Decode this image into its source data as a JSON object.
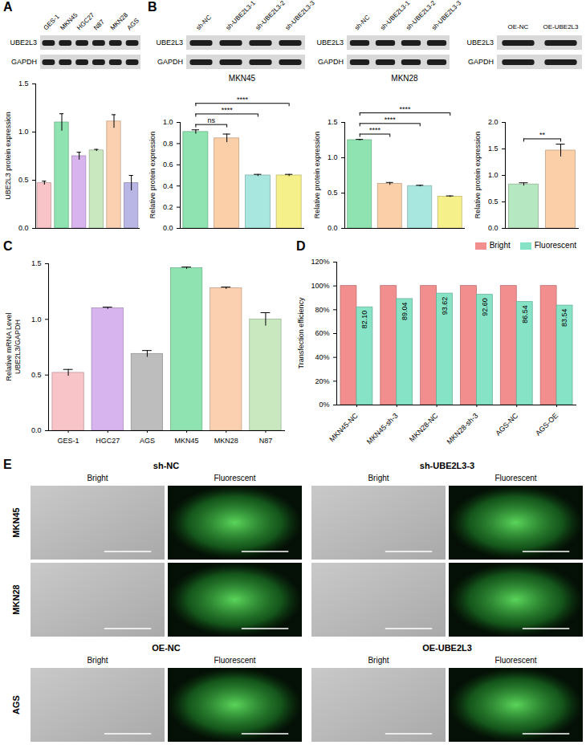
{
  "chart_data": [
    {
      "panel": "A",
      "type": "bar",
      "categories": [
        "GES-1",
        "MKN45",
        "HGC27",
        "N87",
        "MKN28",
        "AGS"
      ],
      "values": [
        0.47,
        1.1,
        0.75,
        0.81,
        1.11,
        0.47
      ],
      "errors": [
        0.02,
        0.09,
        0.04,
        0.01,
        0.07,
        0.08
      ],
      "colors": [
        "#f8c4c8",
        "#8fe3b0",
        "#d8b4ef",
        "#c9e8c0",
        "#fbd0b0",
        "#b9b6e6"
      ],
      "ylabel": "UBE2L3 protein expression",
      "ylim": [
        0,
        1.5
      ],
      "yticks": [
        {
          "value": 0,
          "label": "0.0"
        },
        {
          "value": 0.5,
          "label": "0.5"
        },
        {
          "value": 1,
          "label": "1.0"
        },
        {
          "value": 1.5,
          "label": "1.5"
        }
      ],
      "tick_labels": "y"
    },
    {
      "panel": "B",
      "type": "bar",
      "title": "MKN45",
      "categories": [
        "sh-NC",
        "sh-UBE2L3-1",
        "sh-UBE2L3-2",
        "sh-UBE2L3-3"
      ],
      "values": [
        0.91,
        0.85,
        0.5,
        0.5
      ],
      "errors": [
        0.02,
        0.04,
        0.01,
        0.01
      ],
      "colors": [
        "#8fe3b0",
        "#fbcfa8",
        "#a8e6e0",
        "#f5f08a"
      ],
      "ylabel": "Relative protein expression",
      "ylim": [
        0,
        1
      ],
      "yticks": [
        {
          "value": 0,
          "label": "0.0"
        },
        {
          "value": 0.2,
          "label": "0.2"
        },
        {
          "value": 0.4,
          "label": "0.4"
        },
        {
          "value": 0.6,
          "label": "0.6"
        },
        {
          "value": 0.8,
          "label": "0.8"
        },
        {
          "value": 1,
          "label": "1.0"
        }
      ],
      "comparisons": [
        {
          "groups": [
            "sh-NC",
            "sh-UBE2L3-1"
          ],
          "label": "ns"
        },
        {
          "groups": [
            "sh-NC",
            "sh-UBE2L3-2"
          ],
          "label": "****"
        },
        {
          "groups": [
            "sh-NC",
            "sh-UBE2L3-3"
          ],
          "label": "****"
        }
      ],
      "tick_labels": "y"
    },
    {
      "type": "bar",
      "title": "MKN28",
      "categories": [
        "sh-NC",
        "sh-UBE2L3-1",
        "sh-UBE2L3-2",
        "sh-UBE2L3-3"
      ],
      "values": [
        1.25,
        0.63,
        0.6,
        0.45
      ],
      "errors": [
        0.01,
        0.02,
        0.01,
        0.01
      ],
      "colors": [
        "#8fe3b0",
        "#fbcfa8",
        "#a8e6e0",
        "#f5f08a"
      ],
      "ylabel": "Relative protein expression",
      "ylim": [
        0,
        1.5
      ],
      "yticks": [
        {
          "value": 0,
          "label": "0.0"
        },
        {
          "value": 0.5,
          "label": "0.5"
        },
        {
          "value": 1,
          "label": "1.0"
        },
        {
          "value": 1.5,
          "label": "1.5"
        }
      ],
      "comparisons": [
        {
          "groups": [
            "sh-NC",
            "sh-UBE2L3-1"
          ],
          "label": "****"
        },
        {
          "groups": [
            "sh-NC",
            "sh-UBE2L3-2"
          ],
          "label": "****"
        },
        {
          "groups": [
            "sh-NC",
            "sh-UBE2L3-3"
          ],
          "label": "****"
        }
      ],
      "tick_labels": "y"
    },
    {
      "type": "bar",
      "categories": [
        "OE-NC",
        "OE-UBE2L3"
      ],
      "values": [
        0.83,
        1.47
      ],
      "errors": [
        0.03,
        0.12
      ],
      "colors": [
        "#b5e8c0",
        "#fbcfa8"
      ],
      "ylabel": "Relative protein expression",
      "ylim": [
        0,
        2
      ],
      "yticks": [
        {
          "value": 0,
          "label": "0.0"
        },
        {
          "value": 0.5,
          "label": "0.5"
        },
        {
          "value": 1,
          "label": "1.0"
        },
        {
          "value": 1.5,
          "label": "1.5"
        },
        {
          "value": 2,
          "label": "2.0"
        }
      ],
      "comparisons": [
        {
          "groups": [
            "OE-NC",
            "OE-UBE2L3"
          ],
          "label": "**"
        }
      ],
      "tick_labels": "y"
    },
    {
      "panel": "C",
      "type": "bar",
      "categories": [
        "GES-1",
        "HGC27",
        "AGS",
        "MKN45",
        "MKN28",
        "N87"
      ],
      "values": [
        0.52,
        1.1,
        0.69,
        1.46,
        1.28,
        1.0
      ],
      "errors": [
        0.03,
        0.01,
        0.03,
        0.01,
        0.01,
        0.06
      ],
      "colors": [
        "#f8c4c8",
        "#d8b4ef",
        "#bdbdbd",
        "#8fe3b0",
        "#fbd0b0",
        "#c9e8c0"
      ],
      "ylabel": "Relative mRNA Level\nUBE2L3/GAPDH",
      "ylim": [
        0,
        1.5
      ],
      "yticks": [
        {
          "value": 0,
          "label": "0.0"
        },
        {
          "value": 0.5,
          "label": "0.5"
        },
        {
          "value": 1,
          "label": "1.0"
        },
        {
          "value": 1.5,
          "label": "1.5"
        }
      ]
    },
    {
      "panel": "D",
      "type": "bar",
      "categories": [
        "MKN45-NC",
        "MKN45-sh-3",
        "MKN28-NC",
        "MKN28-sh-3",
        "AGS-NC",
        "AGS-OE"
      ],
      "series": [
        {
          "name": "Bright",
          "color": "#f28e8e",
          "values": [
            100,
            100,
            100,
            100,
            100,
            100
          ]
        },
        {
          "name": "Fluorescent",
          "color": "#86e3c6",
          "values": [
            82.1,
            89.04,
            93.62,
            92.6,
            86.54,
            83.54
          ],
          "data_labels": true,
          "value_labels": [
            "82.10",
            "89.04",
            "93.62",
            "92.60",
            "86.54",
            "83.54"
          ]
        }
      ],
      "ylabel": "Transfection efficiency",
      "ylim": [
        0,
        120
      ],
      "yticks": [
        {
          "value": 0,
          "label": "0%"
        },
        {
          "value": 20,
          "label": "20%"
        },
        {
          "value": 40,
          "label": "40%"
        },
        {
          "value": 60,
          "label": "60%"
        },
        {
          "value": 80,
          "label": "80%"
        },
        {
          "value": 100,
          "label": "100%"
        },
        {
          "value": 120,
          "label": "120%"
        }
      ],
      "legend": "top-right"
    }
  ],
  "blots": [
    {
      "lanes": [
        "GES-1",
        "MKN45",
        "HGC27",
        "N87",
        "MKN28",
        "AGS"
      ],
      "rows": [
        "UBE2L3",
        "GAPDH"
      ]
    },
    {
      "lanes": [
        "sh-NC",
        "sh-UBE2L3-1",
        "sh-UBE2L3-2",
        "sh-UBE2L3-3"
      ],
      "rows": [
        "UBE2L3",
        "GAPDH"
      ]
    },
    {
      "lanes": [
        "sh-NC",
        "sh-UBE2L3-1",
        "sh-UBE2L3-2",
        "sh-UBE2L3-3"
      ],
      "rows": [
        "UBE2L3",
        "GAPDH"
      ]
    },
    {
      "lanes": [
        "OE-NC",
        "OE-UBE2L3"
      ],
      "rows": [
        "UBE2L3",
        "GAPDH"
      ]
    }
  ],
  "images": {
    "panel": "E",
    "sections": [
      {
        "groups": [
          "sh-NC",
          "sh-UBE2L3-3"
        ],
        "columns": [
          "Bright",
          "Fluorescent"
        ],
        "rows": [
          "MKN45",
          "MKN28"
        ]
      },
      {
        "groups": [
          "OE-NC",
          "OE-UBE2L3"
        ],
        "columns": [
          "Bright",
          "Fluorescent"
        ],
        "rows": [
          "AGS"
        ]
      }
    ]
  }
}
